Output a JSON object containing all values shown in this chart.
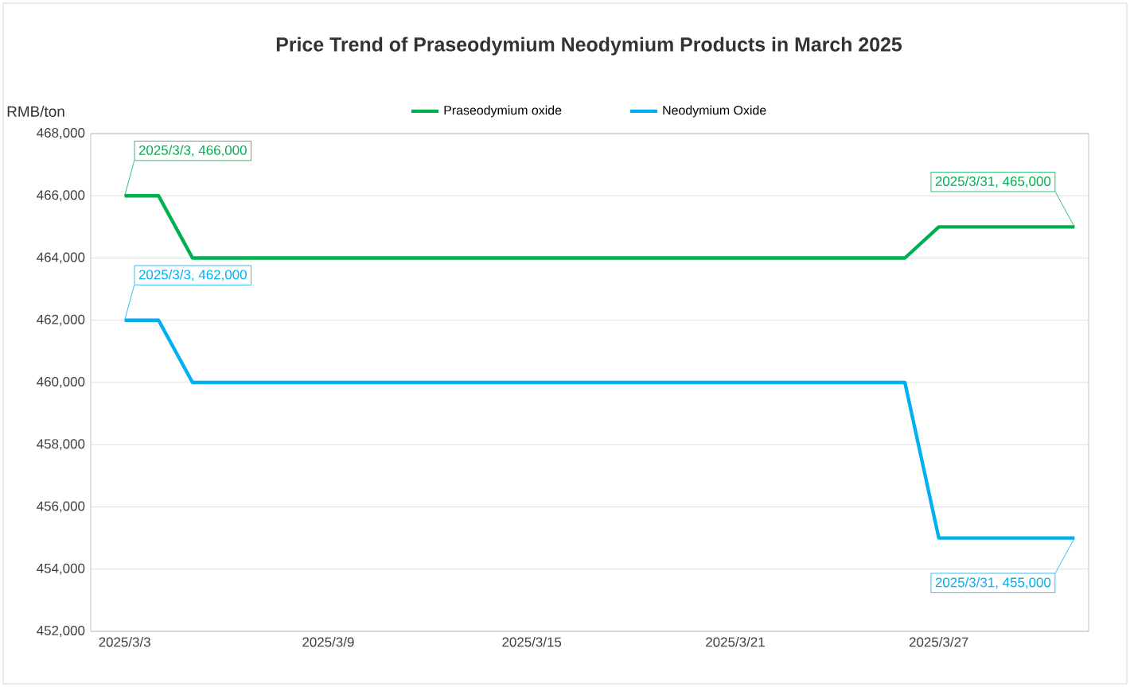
{
  "chart_data": {
    "type": "line",
    "title": "Price Trend of Praseodymium Neodymium Products in March 2025",
    "ylabel": "RMB/ton",
    "series": [
      {
        "name": "Praseodymium oxide",
        "color": "#00b050",
        "x": [
          "2025-03-03",
          "2025-03-04",
          "2025-03-05",
          "2025-03-26",
          "2025-03-27",
          "2025-03-31"
        ],
        "values": [
          466000,
          466000,
          464000,
          464000,
          465000,
          465000
        ]
      },
      {
        "name": "Neodymium Oxide",
        "color": "#00b0f0",
        "x": [
          "2025-03-03",
          "2025-03-04",
          "2025-03-05",
          "2025-03-26",
          "2025-03-27",
          "2025-03-31"
        ],
        "values": [
          462000,
          462000,
          460000,
          460000,
          455000,
          455000
        ]
      }
    ],
    "xlim": [
      "2025-03-02",
      "2025-03-31T10:00"
    ],
    "xticks": [
      {
        "value": "2025-03-03",
        "label": "2025/3/3"
      },
      {
        "value": "2025-03-09",
        "label": "2025/3/9"
      },
      {
        "value": "2025-03-15",
        "label": "2025/3/15"
      },
      {
        "value": "2025-03-21",
        "label": "2025/3/21"
      },
      {
        "value": "2025-03-27",
        "label": "2025/3/27"
      }
    ],
    "ylim": [
      452000,
      468000
    ],
    "yticks": [
      {
        "value": 452000,
        "label": "452,000"
      },
      {
        "value": 454000,
        "label": "454,000"
      },
      {
        "value": 456000,
        "label": "456,000"
      },
      {
        "value": 458000,
        "label": "458,000"
      },
      {
        "value": 460000,
        "label": "460,000"
      },
      {
        "value": 462000,
        "label": "462,000"
      },
      {
        "value": 464000,
        "label": "464,000"
      },
      {
        "value": 466000,
        "label": "466,000"
      },
      {
        "value": 468000,
        "label": "468,000"
      }
    ],
    "annotations": [
      {
        "text": "2025/3/3, 466,000",
        "x": "2025-03-03",
        "y": 466000
      },
      {
        "text": "2025/3/3, 462,000",
        "x": "2025-03-03",
        "y": 462000
      },
      {
        "text": "2025/3/31, 465,000",
        "x": "2025-03-31",
        "y": 465000
      },
      {
        "text": "2025/3/31, 455,000",
        "x": "2025-03-31",
        "y": 455000
      }
    ],
    "grid": "y",
    "legend": "top",
    "marker": "none",
    "line_style": "solid"
  }
}
